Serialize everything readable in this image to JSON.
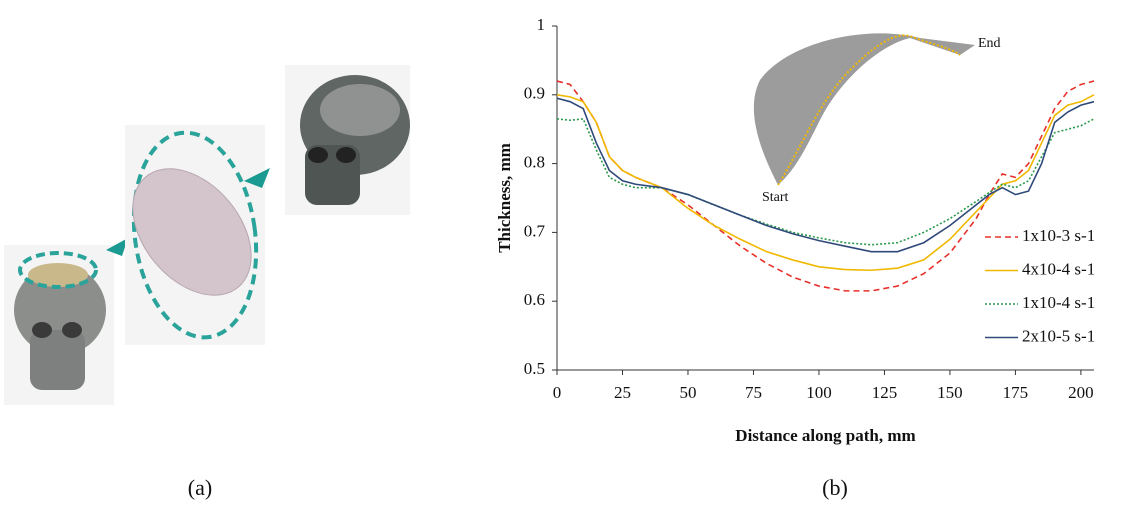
{
  "captions": [
    "(a)",
    "(b)"
  ],
  "chart_data": {
    "type": "line",
    "xlabel": "Distance along path, mm",
    "ylabel": "Thickness, mm",
    "annotations": [
      "Start",
      "End"
    ],
    "x": [
      0,
      5,
      10,
      15,
      20,
      25,
      30,
      40,
      50,
      60,
      70,
      80,
      90,
      100,
      110,
      120,
      130,
      140,
      150,
      160,
      165,
      170,
      175,
      180,
      185,
      190,
      195,
      200,
      205
    ],
    "series": [
      {
        "name": "1x10-3 s-1",
        "color": "#e8302a",
        "style": "dashed",
        "values": [
          0.92,
          0.915,
          0.89,
          0.86,
          0.81,
          0.79,
          0.78,
          0.765,
          0.74,
          0.71,
          0.68,
          0.655,
          0.635,
          0.622,
          0.615,
          0.615,
          0.622,
          0.64,
          0.67,
          0.72,
          0.755,
          0.785,
          0.78,
          0.8,
          0.84,
          0.88,
          0.905,
          0.915,
          0.92
        ]
      },
      {
        "name": "4x10-4 s-1",
        "color": "#f0b800",
        "style": "solid",
        "values": [
          0.9,
          0.897,
          0.89,
          0.86,
          0.81,
          0.79,
          0.78,
          0.765,
          0.735,
          0.71,
          0.69,
          0.672,
          0.66,
          0.65,
          0.646,
          0.645,
          0.648,
          0.66,
          0.69,
          0.73,
          0.75,
          0.77,
          0.775,
          0.79,
          0.83,
          0.87,
          0.885,
          0.89,
          0.9
        ]
      },
      {
        "name": "1x10-4 s-1",
        "color": "#2a9a4a",
        "style": "dotted",
        "values": [
          0.865,
          0.863,
          0.865,
          0.82,
          0.78,
          0.77,
          0.765,
          0.765,
          0.755,
          0.74,
          0.725,
          0.712,
          0.7,
          0.692,
          0.685,
          0.682,
          0.685,
          0.7,
          0.72,
          0.745,
          0.758,
          0.77,
          0.765,
          0.775,
          0.81,
          0.845,
          0.85,
          0.855,
          0.865
        ]
      },
      {
        "name": "2x10-5 s-1",
        "color": "#2f4a7a",
        "style": "solid",
        "values": [
          0.895,
          0.89,
          0.88,
          0.83,
          0.79,
          0.775,
          0.77,
          0.765,
          0.755,
          0.74,
          0.725,
          0.71,
          0.698,
          0.688,
          0.68,
          0.672,
          0.672,
          0.685,
          0.71,
          0.74,
          0.755,
          0.765,
          0.755,
          0.76,
          0.8,
          0.86,
          0.875,
          0.885,
          0.89
        ]
      }
    ],
    "xlim": [
      0,
      205
    ],
    "xticks": [
      0,
      25,
      50,
      75,
      100,
      125,
      150,
      175,
      200
    ],
    "ylim": [
      0.5,
      1
    ],
    "yticks": [
      0.5,
      0.6,
      0.7,
      0.8,
      0.9,
      1
    ],
    "legend": "lower right"
  }
}
